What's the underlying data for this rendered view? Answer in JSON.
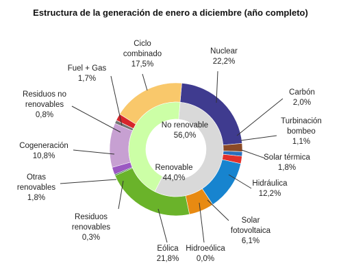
{
  "chart_data": {
    "type": "pie",
    "subtype": "nested-donut",
    "title": "Estructura de la generación de enero a diciembre (año completo)",
    "inner_ring": [
      {
        "label": "No renovable",
        "display": "56,0%",
        "value": 56.0,
        "color": "#d9d9d9"
      },
      {
        "label": "Renovable",
        "display": "44,0%",
        "value": 44.0,
        "color": "#ccffa6"
      }
    ],
    "outer_ring": [
      {
        "label": "Nuclear",
        "display": "22,2%",
        "value": 22.2,
        "color": "#3f3b8f"
      },
      {
        "label": "Carbón",
        "display": "2,0%",
        "value": 2.0,
        "color": "#8b4a26"
      },
      {
        "label": "Turbinación bombeo",
        "display": "1,1%",
        "value": 1.1,
        "color": "#2a6fbb"
      },
      {
        "label": "Solar térmica",
        "display": "1,8%",
        "value": 1.8,
        "color": "#e1302b"
      },
      {
        "label": "Hidráulica",
        "display": "12,2%",
        "value": 12.2,
        "color": "#1784cf"
      },
      {
        "label": "Solar fotovoltaica",
        "display": "6,1%",
        "value": 6.1,
        "color": "#e88a12"
      },
      {
        "label": "Hidroeólica",
        "display": "0,0%",
        "value": 0.0,
        "color": "#5b8bd0"
      },
      {
        "label": "Eólica",
        "display": "21,8%",
        "value": 21.8,
        "color": "#6ab32a"
      },
      {
        "label": "Residuos renovables",
        "display": "0,3%",
        "value": 0.3,
        "color": "#2f7a39"
      },
      {
        "label": "Otras renovables",
        "display": "1,8%",
        "value": 1.8,
        "color": "#9b58c2"
      },
      {
        "label": "Cogeneración",
        "display": "10,8%",
        "value": 10.8,
        "color": "#c7a0d2"
      },
      {
        "label": "Residuos no renovables",
        "display": "0,8%",
        "value": 0.8,
        "color": "#737373"
      },
      {
        "label": "Fuel + Gas",
        "display": "1,7%",
        "value": 1.7,
        "color": "#d7262b"
      },
      {
        "label": "Ciclo combinado",
        "display": "17,5%",
        "value": 17.5,
        "color": "#f9c86b"
      }
    ]
  }
}
